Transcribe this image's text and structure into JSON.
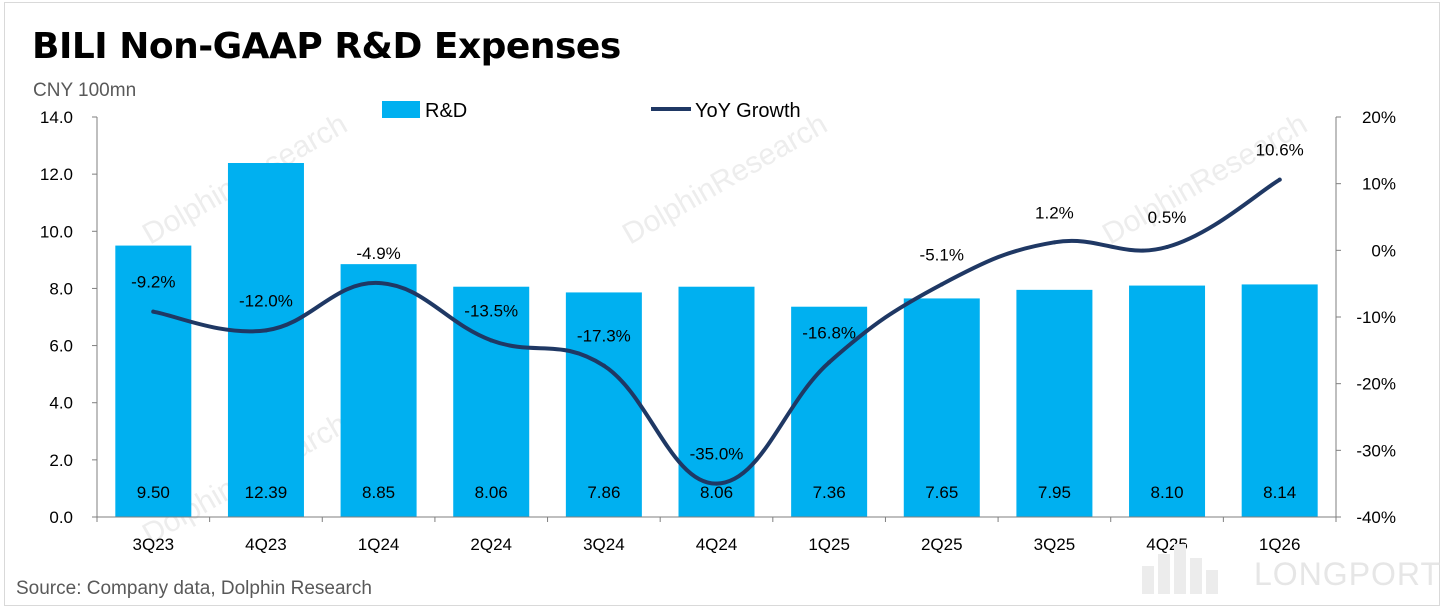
{
  "title": "BILI Non-GAAP R&D Expenses",
  "unit_label": "CNY 100mn",
  "source": "Source: Company data, Dolphin Research",
  "watermark": {
    "text": "DolphinResearch",
    "brand": "LONGPORT"
  },
  "colors": {
    "bar": "#00b0f0",
    "line": "#1f3864",
    "axis": "#7f7f7f"
  },
  "chart_data": {
    "type": "bar",
    "categories": [
      "3Q23",
      "4Q23",
      "1Q24",
      "2Q24",
      "3Q24",
      "4Q24",
      "1Q25",
      "2Q25",
      "3Q25",
      "4Q25",
      "1Q26"
    ],
    "series": [
      {
        "name": "R&D",
        "type": "bar",
        "axis": "left",
        "values": [
          9.5,
          12.39,
          8.85,
          8.06,
          7.86,
          8.06,
          7.36,
          7.65,
          7.95,
          8.1,
          8.14
        ],
        "labels": [
          "9.50",
          "12.39",
          "8.85",
          "8.06",
          "7.86",
          "8.06",
          "7.36",
          "7.65",
          "7.95",
          "8.10",
          "8.14"
        ]
      },
      {
        "name": "YoY Growth",
        "type": "line",
        "axis": "right",
        "values": [
          -9.2,
          -12.0,
          -4.9,
          -13.5,
          -17.3,
          -35.0,
          -16.8,
          -5.1,
          1.2,
          0.5,
          10.6
        ],
        "labels": [
          "-9.2%",
          "-12.0%",
          "-4.9%",
          "-13.5%",
          "-17.3%",
          "-35.0%",
          "-16.8%",
          "-5.1%",
          "1.2%",
          "0.5%",
          "10.6%"
        ]
      }
    ],
    "y_left": {
      "min": 0,
      "max": 14,
      "ticks": [
        "0.0",
        "2.0",
        "4.0",
        "6.0",
        "8.0",
        "10.0",
        "12.0",
        "14.0"
      ]
    },
    "y_right": {
      "min": -40,
      "max": 20,
      "ticks": [
        "-40%",
        "-30%",
        "-20%",
        "-10%",
        "0%",
        "10%",
        "20%"
      ]
    },
    "legend": [
      "R&D",
      "YoY Growth"
    ],
    "legend_position": "top",
    "grid": false
  }
}
